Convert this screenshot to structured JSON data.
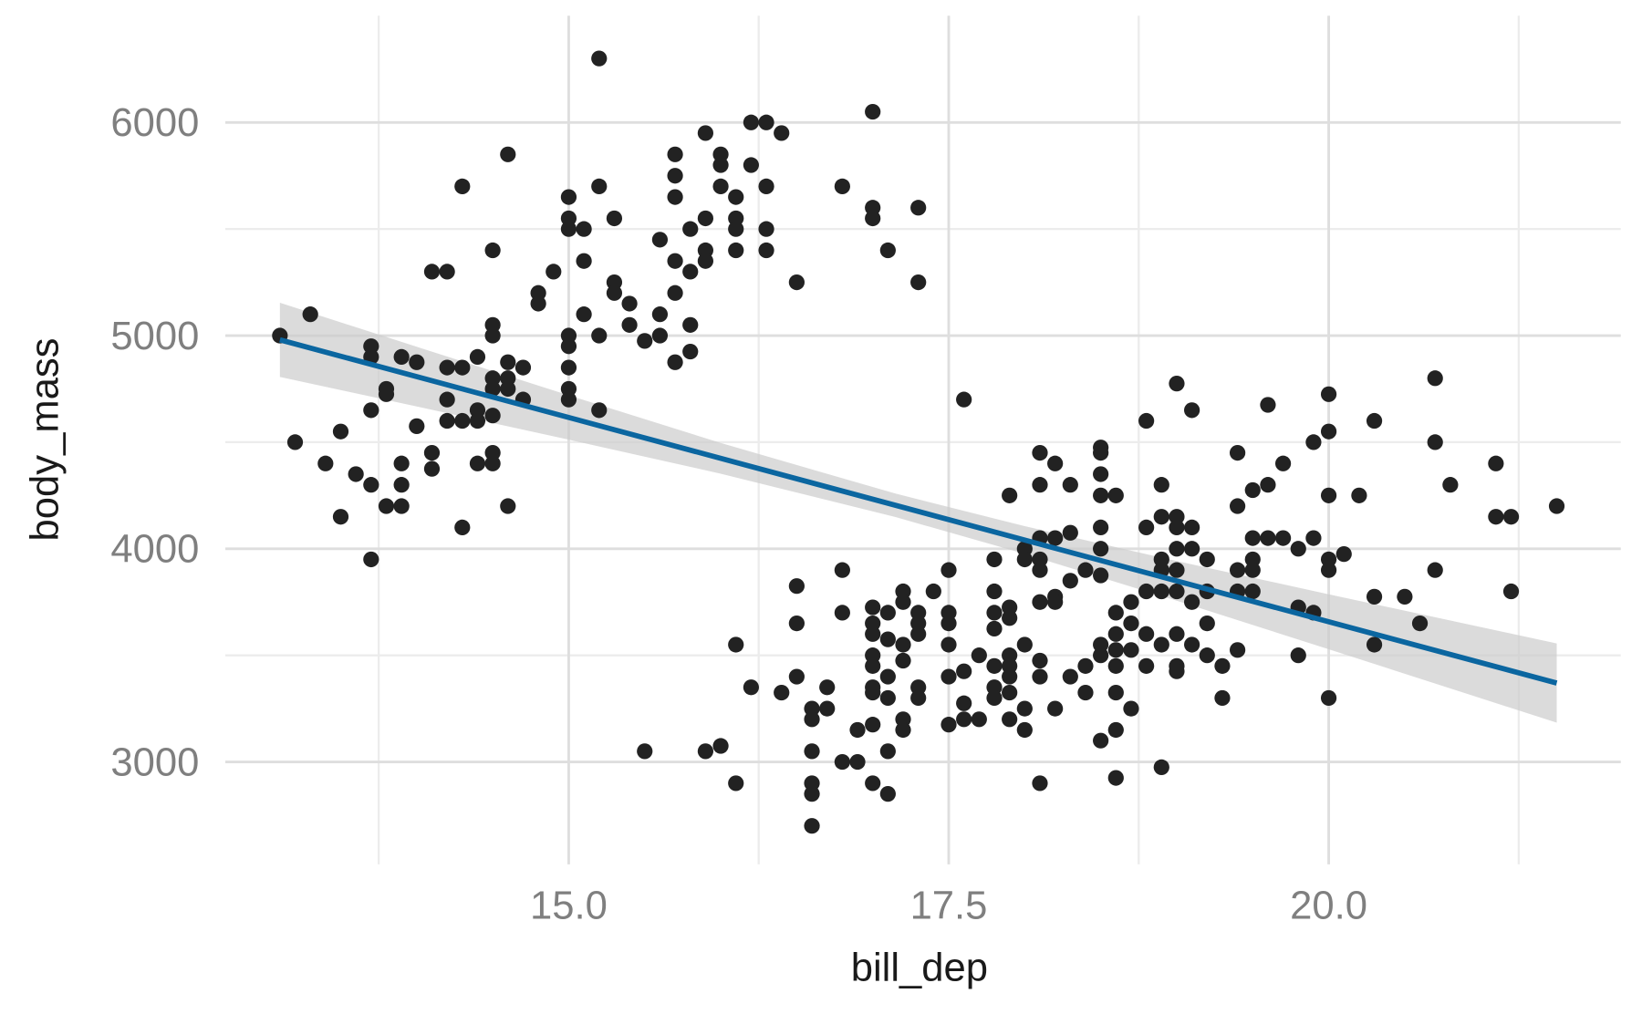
{
  "chart_data": {
    "type": "scatter",
    "title": "",
    "xlabel": "bill_dep",
    "ylabel": "body_mass",
    "xlim": [
      12.75,
      21.92
    ],
    "ylim": [
      2520,
      6500
    ],
    "grid": true,
    "x_ticks": [
      15.0,
      17.5,
      20.0
    ],
    "x_tick_labels": [
      "15.0",
      "17.5",
      "20.0"
    ],
    "y_ticks": [
      3000,
      4000,
      5000,
      6000
    ],
    "y_tick_labels": [
      "3000",
      "4000",
      "5000",
      "6000"
    ],
    "colors": {
      "points": "#222222",
      "fit": "#0b66a0",
      "band": "#cccccc",
      "grid_major": "#dedede",
      "grid_minor": "#ececec"
    },
    "points": [
      [
        13.1,
        5000
      ],
      [
        13.3,
        5100
      ],
      [
        13.2,
        4500
      ],
      [
        13.4,
        4400
      ],
      [
        13.5,
        4550
      ],
      [
        13.5,
        4150
      ],
      [
        13.6,
        4350
      ],
      [
        13.7,
        4950
      ],
      [
        13.7,
        4900
      ],
      [
        13.7,
        4650
      ],
      [
        13.7,
        4300
      ],
      [
        13.7,
        3950
      ],
      [
        13.8,
        4750
      ],
      [
        13.8,
        4725
      ],
      [
        13.8,
        4200
      ],
      [
        13.9,
        4900
      ],
      [
        13.9,
        4400
      ],
      [
        13.9,
        4300
      ],
      [
        13.9,
        4200
      ],
      [
        14.0,
        4875
      ],
      [
        14.0,
        4575
      ],
      [
        14.1,
        5300
      ],
      [
        14.1,
        4450
      ],
      [
        14.1,
        4375
      ],
      [
        14.2,
        5300
      ],
      [
        14.2,
        4850
      ],
      [
        14.2,
        4700
      ],
      [
        14.2,
        4600
      ],
      [
        14.3,
        5700
      ],
      [
        14.3,
        4850
      ],
      [
        14.3,
        4600
      ],
      [
        14.3,
        4100
      ],
      [
        14.4,
        4900
      ],
      [
        14.4,
        4650
      ],
      [
        14.4,
        4600
      ],
      [
        14.4,
        4400
      ],
      [
        14.5,
        5400
      ],
      [
        14.5,
        5050
      ],
      [
        14.5,
        5000
      ],
      [
        14.5,
        4800
      ],
      [
        14.5,
        4750
      ],
      [
        14.5,
        4625
      ],
      [
        14.5,
        4450
      ],
      [
        14.5,
        4400
      ],
      [
        14.6,
        5850
      ],
      [
        14.6,
        4875
      ],
      [
        14.6,
        4800
      ],
      [
        14.6,
        4750
      ],
      [
        14.6,
        4200
      ],
      [
        14.7,
        4850
      ],
      [
        14.7,
        4700
      ],
      [
        14.8,
        5200
      ],
      [
        14.8,
        5150
      ],
      [
        14.9,
        5300
      ],
      [
        15.0,
        5650
      ],
      [
        15.0,
        5550
      ],
      [
        15.0,
        5500
      ],
      [
        15.0,
        5000
      ],
      [
        15.0,
        4950
      ],
      [
        15.0,
        4850
      ],
      [
        15.0,
        4750
      ],
      [
        15.0,
        4700
      ],
      [
        15.1,
        5500
      ],
      [
        15.1,
        5350
      ],
      [
        15.1,
        5100
      ],
      [
        15.2,
        6300
      ],
      [
        15.2,
        5700
      ],
      [
        15.2,
        5000
      ],
      [
        15.2,
        4650
      ],
      [
        15.3,
        5550
      ],
      [
        15.3,
        5250
      ],
      [
        15.3,
        5200
      ],
      [
        15.4,
        5150
      ],
      [
        15.4,
        5050
      ],
      [
        15.5,
        4975
      ],
      [
        15.5,
        3050
      ],
      [
        15.6,
        5450
      ],
      [
        15.6,
        5100
      ],
      [
        15.6,
        5000
      ],
      [
        15.7,
        5850
      ],
      [
        15.7,
        5750
      ],
      [
        15.7,
        5650
      ],
      [
        15.7,
        5350
      ],
      [
        15.7,
        5200
      ],
      [
        15.7,
        4875
      ],
      [
        15.8,
        5500
      ],
      [
        15.8,
        5300
      ],
      [
        15.8,
        5050
      ],
      [
        15.8,
        4925
      ],
      [
        15.9,
        5950
      ],
      [
        15.9,
        5550
      ],
      [
        15.9,
        5400
      ],
      [
        15.9,
        5350
      ],
      [
        15.9,
        3050
      ],
      [
        16.0,
        5850
      ],
      [
        16.0,
        5800
      ],
      [
        16.0,
        5700
      ],
      [
        16.0,
        3075
      ],
      [
        16.1,
        5650
      ],
      [
        16.1,
        5550
      ],
      [
        16.1,
        5500
      ],
      [
        16.1,
        5400
      ],
      [
        16.1,
        3550
      ],
      [
        16.1,
        2900
      ],
      [
        16.2,
        6000
      ],
      [
        16.2,
        5800
      ],
      [
        16.2,
        3350
      ],
      [
        16.3,
        6000
      ],
      [
        16.3,
        5700
      ],
      [
        16.3,
        5500
      ],
      [
        16.3,
        5400
      ],
      [
        16.4,
        5950
      ],
      [
        16.4,
        3325
      ],
      [
        16.5,
        5250
      ],
      [
        16.5,
        3825
      ],
      [
        16.5,
        3650
      ],
      [
        16.5,
        3400
      ],
      [
        16.6,
        3250
      ],
      [
        16.6,
        3200
      ],
      [
        16.6,
        3050
      ],
      [
        16.6,
        2900
      ],
      [
        16.6,
        2850
      ],
      [
        16.6,
        2700
      ],
      [
        16.7,
        3350
      ],
      [
        16.7,
        3250
      ],
      [
        16.8,
        5700
      ],
      [
        16.8,
        3900
      ],
      [
        16.8,
        3700
      ],
      [
        16.8,
        3000
      ],
      [
        16.9,
        3150
      ],
      [
        16.9,
        3000
      ],
      [
        17.0,
        6050
      ],
      [
        17.0,
        5600
      ],
      [
        17.0,
        5550
      ],
      [
        17.0,
        3725
      ],
      [
        17.0,
        3650
      ],
      [
        17.0,
        3600
      ],
      [
        17.0,
        3500
      ],
      [
        17.0,
        3450
      ],
      [
        17.0,
        3350
      ],
      [
        17.0,
        3325
      ],
      [
        17.0,
        3175
      ],
      [
        17.0,
        2900
      ],
      [
        17.1,
        5400
      ],
      [
        17.1,
        3700
      ],
      [
        17.1,
        3575
      ],
      [
        17.1,
        3400
      ],
      [
        17.1,
        3300
      ],
      [
        17.1,
        3050
      ],
      [
        17.1,
        2850
      ],
      [
        17.2,
        3800
      ],
      [
        17.2,
        3750
      ],
      [
        17.2,
        3550
      ],
      [
        17.2,
        3475
      ],
      [
        17.2,
        3200
      ],
      [
        17.2,
        3150
      ],
      [
        17.3,
        5600
      ],
      [
        17.3,
        5250
      ],
      [
        17.3,
        3700
      ],
      [
        17.3,
        3650
      ],
      [
        17.3,
        3600
      ],
      [
        17.3,
        3350
      ],
      [
        17.3,
        3300
      ],
      [
        17.4,
        3800
      ],
      [
        17.5,
        3900
      ],
      [
        17.5,
        3700
      ],
      [
        17.5,
        3650
      ],
      [
        17.5,
        3550
      ],
      [
        17.5,
        3400
      ],
      [
        17.5,
        3175
      ],
      [
        17.6,
        4700
      ],
      [
        17.6,
        3425
      ],
      [
        17.6,
        3275
      ],
      [
        17.6,
        3200
      ],
      [
        17.7,
        3500
      ],
      [
        17.7,
        3200
      ],
      [
        17.8,
        3950
      ],
      [
        17.8,
        3800
      ],
      [
        17.8,
        3700
      ],
      [
        17.8,
        3625
      ],
      [
        17.8,
        3450
      ],
      [
        17.8,
        3350
      ],
      [
        17.8,
        3300
      ],
      [
        17.9,
        4250
      ],
      [
        17.9,
        3725
      ],
      [
        17.9,
        3675
      ],
      [
        17.9,
        3500
      ],
      [
        17.9,
        3450
      ],
      [
        17.9,
        3400
      ],
      [
        17.9,
        3325
      ],
      [
        17.9,
        3200
      ],
      [
        18.0,
        4000
      ],
      [
        18.0,
        3950
      ],
      [
        18.0,
        3550
      ],
      [
        18.0,
        3250
      ],
      [
        18.0,
        3150
      ],
      [
        18.1,
        4450
      ],
      [
        18.1,
        4300
      ],
      [
        18.1,
        4050
      ],
      [
        18.1,
        3950
      ],
      [
        18.1,
        3900
      ],
      [
        18.1,
        3750
      ],
      [
        18.1,
        3475
      ],
      [
        18.1,
        3400
      ],
      [
        18.1,
        2900
      ],
      [
        18.2,
        4400
      ],
      [
        18.2,
        4050
      ],
      [
        18.2,
        3775
      ],
      [
        18.2,
        3750
      ],
      [
        18.2,
        3250
      ],
      [
        18.3,
        4300
      ],
      [
        18.3,
        4075
      ],
      [
        18.3,
        3850
      ],
      [
        18.3,
        3400
      ],
      [
        18.4,
        3450
      ],
      [
        18.4,
        3325
      ],
      [
        18.4,
        3900
      ],
      [
        18.5,
        4475
      ],
      [
        18.5,
        4450
      ],
      [
        18.5,
        4350
      ],
      [
        18.5,
        4250
      ],
      [
        18.5,
        4100
      ],
      [
        18.5,
        4000
      ],
      [
        18.5,
        3875
      ],
      [
        18.5,
        3550
      ],
      [
        18.5,
        3500
      ],
      [
        18.5,
        3100
      ],
      [
        18.6,
        4250
      ],
      [
        18.6,
        3700
      ],
      [
        18.6,
        3600
      ],
      [
        18.6,
        3525
      ],
      [
        18.6,
        3450
      ],
      [
        18.6,
        3325
      ],
      [
        18.6,
        3150
      ],
      [
        18.6,
        2925
      ],
      [
        18.7,
        3750
      ],
      [
        18.7,
        3650
      ],
      [
        18.7,
        3525
      ],
      [
        18.7,
        3250
      ],
      [
        18.8,
        4600
      ],
      [
        18.8,
        4100
      ],
      [
        18.8,
        3800
      ],
      [
        18.8,
        3600
      ],
      [
        18.8,
        3450
      ],
      [
        18.9,
        4300
      ],
      [
        18.9,
        4150
      ],
      [
        18.9,
        3950
      ],
      [
        18.9,
        3900
      ],
      [
        18.9,
        3800
      ],
      [
        18.9,
        3550
      ],
      [
        18.9,
        2975
      ],
      [
        19.0,
        4775
      ],
      [
        19.0,
        4150
      ],
      [
        19.0,
        4100
      ],
      [
        19.0,
        4000
      ],
      [
        19.0,
        3900
      ],
      [
        19.0,
        3800
      ],
      [
        19.0,
        3600
      ],
      [
        19.0,
        3450
      ],
      [
        19.0,
        3425
      ],
      [
        19.1,
        4650
      ],
      [
        19.1,
        4100
      ],
      [
        19.1,
        4000
      ],
      [
        19.1,
        3750
      ],
      [
        19.1,
        3550
      ],
      [
        19.2,
        3950
      ],
      [
        19.2,
        3800
      ],
      [
        19.2,
        3650
      ],
      [
        19.2,
        3500
      ],
      [
        19.3,
        3450
      ],
      [
        19.3,
        3300
      ],
      [
        19.4,
        4450
      ],
      [
        19.4,
        4200
      ],
      [
        19.4,
        3900
      ],
      [
        19.4,
        3800
      ],
      [
        19.4,
        3525
      ],
      [
        19.5,
        4275
      ],
      [
        19.5,
        4050
      ],
      [
        19.5,
        3950
      ],
      [
        19.5,
        3900
      ],
      [
        19.5,
        3800
      ],
      [
        19.6,
        4675
      ],
      [
        19.6,
        4300
      ],
      [
        19.6,
        4050
      ],
      [
        19.7,
        4400
      ],
      [
        19.7,
        4050
      ],
      [
        19.8,
        4000
      ],
      [
        19.8,
        3725
      ],
      [
        19.8,
        3500
      ],
      [
        19.9,
        4500
      ],
      [
        19.9,
        4050
      ],
      [
        19.9,
        3700
      ],
      [
        20.0,
        4725
      ],
      [
        20.0,
        4550
      ],
      [
        20.0,
        4250
      ],
      [
        20.0,
        3950
      ],
      [
        20.0,
        3900
      ],
      [
        20.0,
        3300
      ],
      [
        20.1,
        3975
      ],
      [
        20.2,
        4250
      ],
      [
        20.3,
        4600
      ],
      [
        20.3,
        3775
      ],
      [
        20.3,
        3550
      ],
      [
        20.5,
        3775
      ],
      [
        20.6,
        3650
      ],
      [
        20.7,
        4800
      ],
      [
        20.7,
        4500
      ],
      [
        20.7,
        3900
      ],
      [
        20.8,
        4300
      ],
      [
        21.1,
        4400
      ],
      [
        21.1,
        4150
      ],
      [
        21.2,
        4150
      ],
      [
        21.2,
        3800
      ],
      [
        21.5,
        4200
      ]
    ],
    "fit": {
      "method": "lm",
      "x": [
        13.1,
        21.5
      ],
      "y": [
        4980,
        3370
      ]
    },
    "confidence_band": {
      "x": [
        13.1,
        14.0,
        15.0,
        16.0,
        17.15,
        18.0,
        19.0,
        20.0,
        21.5
      ],
      "half_width": [
        174,
        140,
        104,
        72,
        55,
        65,
        93,
        129,
        186
      ]
    }
  }
}
